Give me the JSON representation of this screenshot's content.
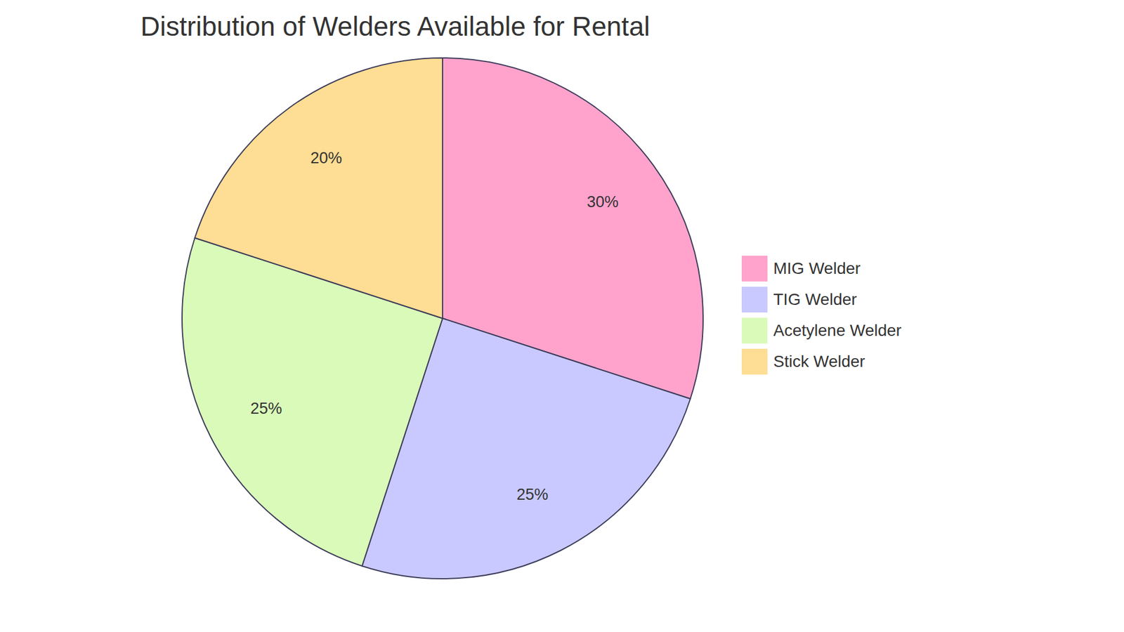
{
  "chart_data": {
    "type": "pie",
    "title": "Distribution of Welders Available for Rental",
    "categories": [
      "MIG Welder",
      "TIG Welder",
      "Acetylene Welder",
      "Stick Welder"
    ],
    "values": [
      30,
      25,
      25,
      20
    ],
    "value_labels": [
      "30%",
      "25%",
      "25%",
      "20%"
    ],
    "colors": [
      "#ffa3cc",
      "#c9c9ff",
      "#dafab9",
      "#fedd94"
    ],
    "data_labels": true,
    "legend": "right"
  }
}
